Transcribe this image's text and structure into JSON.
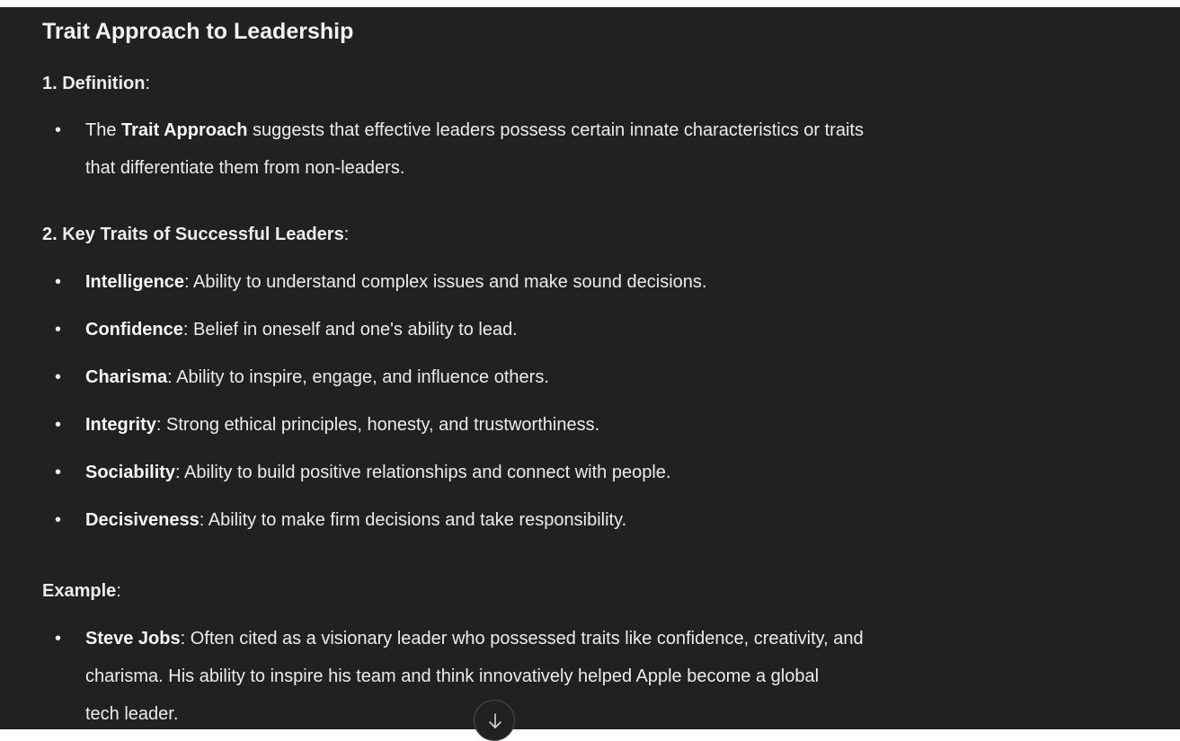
{
  "title": "Trait Approach to Leadership",
  "definition": {
    "heading_bold": "1. Definition",
    "heading_suffix": ":",
    "bullet": {
      "prefix": "The ",
      "bold": "Trait Approach",
      "line1_rest": " suggests that effective leaders possess certain innate characteristics or traits",
      "line2": "that differentiate them from non-leaders."
    }
  },
  "key_traits": {
    "heading_bold": "2. Key Traits of Successful Leaders",
    "heading_suffix": ":",
    "items": [
      {
        "term": "Intelligence",
        "desc": ": Ability to understand complex issues and make sound decisions."
      },
      {
        "term": "Confidence",
        "desc": ": Belief in oneself and one's ability to lead."
      },
      {
        "term": "Charisma",
        "desc": ": Ability to inspire, engage, and influence others."
      },
      {
        "term": "Integrity",
        "desc": ": Strong ethical principles, honesty, and trustworthiness."
      },
      {
        "term": "Sociability",
        "desc": ": Ability to build positive relationships and connect with people."
      },
      {
        "term": "Decisiveness",
        "desc": ": Ability to make firm decisions and take responsibility."
      }
    ]
  },
  "example": {
    "heading_bold": "Example",
    "heading_suffix": ":",
    "bullet": {
      "bold": "Steve Jobs",
      "line1_rest": ": Often cited as a visionary leader who possessed traits like confidence, creativity, and",
      "line2": "charisma. His ability to inspire his team and think innovatively helped Apple become a global",
      "line3": "tech leader."
    }
  },
  "scroll_button": {
    "icon": "arrow-down-icon"
  },
  "colors": {
    "background": "#212121",
    "text": "#ececec"
  }
}
